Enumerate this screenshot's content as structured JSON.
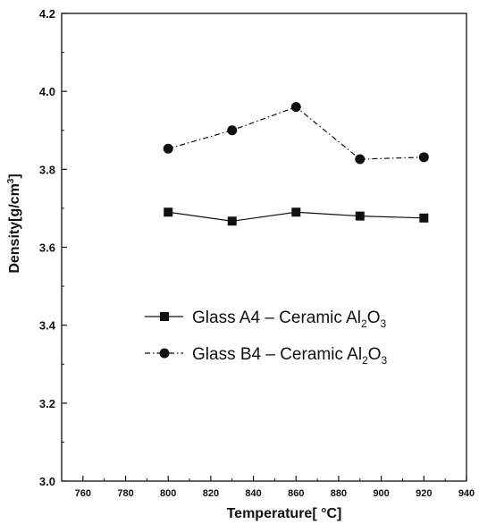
{
  "chart_data": {
    "type": "line",
    "title": "",
    "xlabel": "Temperature[ °C]",
    "ylabel_main": "Density[g/cm",
    "ylabel_sup": "3",
    "ylabel_end": "]",
    "xlim": [
      750,
      940
    ],
    "ylim": [
      3.0,
      4.2
    ],
    "xticks": [
      760,
      780,
      800,
      820,
      840,
      860,
      880,
      900,
      920,
      940
    ],
    "xtick_labels": [
      "760",
      "780",
      "800",
      "820",
      "840",
      "860",
      "880",
      "900",
      "920",
      "940"
    ],
    "yticks": [
      3.0,
      3.2,
      3.4,
      3.6,
      3.8,
      4.0,
      4.2
    ],
    "ytick_labels": [
      "3.0",
      "3.2",
      "3.4",
      "3.6",
      "3.8",
      "4.0",
      "4.2"
    ],
    "grid": false,
    "legend_position": "center-right",
    "series": [
      {
        "name": "Glass A4 - Ceramic Al2O3",
        "legend_prefix": "Glass A4 – Ceramic Al",
        "legend_sub1": "2",
        "legend_mid": "O",
        "legend_sub2": "3",
        "marker": "square",
        "line_style": "solid",
        "color": "#111111",
        "x": [
          800,
          830,
          860,
          890,
          920
        ],
        "y": [
          3.69,
          3.667,
          3.69,
          3.68,
          3.675
        ]
      },
      {
        "name": "Glass B4 - Ceramic Al2O3",
        "legend_prefix": "Glass B4 – Ceramic Al",
        "legend_sub1": "2",
        "legend_mid": "O",
        "legend_sub2": "3",
        "marker": "circle",
        "line_style": "dashdot",
        "color": "#111111",
        "x": [
          800,
          830,
          860,
          890,
          920
        ],
        "y": [
          3.853,
          3.9,
          3.96,
          3.826,
          3.831
        ]
      }
    ]
  }
}
